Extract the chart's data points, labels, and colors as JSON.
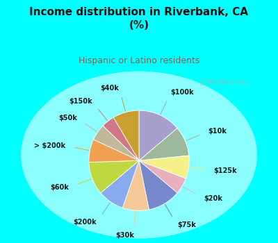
{
  "title": "Income distribution in Riverbank, CA\n(%)",
  "subtitle": "Hispanic or Latino residents",
  "title_color": "#111111",
  "subtitle_color": "#8B6050",
  "bg_color": "#00ffff",
  "chart_bg_color": "#e8f5ef",
  "watermark": "⌖ City-Data.com",
  "labels": [
    "$100k",
    "$10k",
    "$125k",
    "$20k",
    "$75k",
    "$30k",
    "$200k",
    "$60k",
    "> $200k",
    "$50k",
    "$150k",
    "$40k"
  ],
  "values": [
    13,
    9,
    7,
    5,
    10,
    8,
    8,
    10,
    7,
    5,
    4,
    8
  ],
  "colors": [
    "#a89fcc",
    "#9db89a",
    "#f5f08a",
    "#e8b0bc",
    "#7888cc",
    "#f5c898",
    "#88aaee",
    "#c0d840",
    "#f0a050",
    "#c0b898",
    "#d07888",
    "#c8a030"
  ],
  "figsize": [
    4.0,
    3.5
  ],
  "dpi": 100
}
